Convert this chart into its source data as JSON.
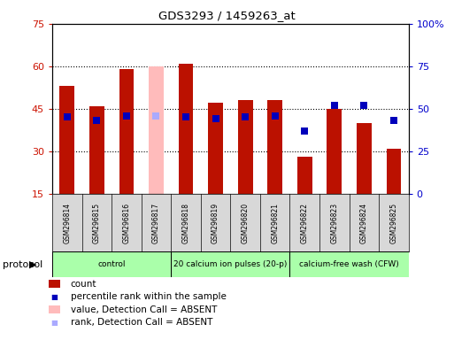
{
  "title": "GDS3293 / 1459263_at",
  "samples": [
    "GSM296814",
    "GSM296815",
    "GSM296816",
    "GSM296817",
    "GSM296818",
    "GSM296819",
    "GSM296820",
    "GSM296821",
    "GSM296822",
    "GSM296823",
    "GSM296824",
    "GSM296825"
  ],
  "counts": [
    53,
    46,
    59,
    60,
    61,
    47,
    48,
    48,
    28,
    45,
    40,
    31
  ],
  "percentiles": [
    45,
    43,
    46,
    46,
    45,
    44,
    45,
    46,
    37,
    52,
    52,
    43
  ],
  "absent": [
    false,
    false,
    false,
    true,
    false,
    false,
    false,
    false,
    false,
    false,
    false,
    false
  ],
  "ylim_left": [
    15,
    75
  ],
  "ylim_right": [
    0,
    100
  ],
  "yticks_left": [
    15,
    30,
    45,
    60,
    75
  ],
  "yticks_right": [
    0,
    25,
    50,
    75,
    100
  ],
  "ytick_labels_right": [
    "0",
    "25",
    "50",
    "75",
    "100%"
  ],
  "groups": [
    {
      "label": "control",
      "start": 0,
      "end": 3
    },
    {
      "label": "20 calcium ion pulses (20-p)",
      "start": 4,
      "end": 7
    },
    {
      "label": "calcium-free wash (CFW)",
      "start": 8,
      "end": 11
    }
  ],
  "group_color": "#aaffaa",
  "bar_color_present": "#bb1100",
  "bar_color_absent": "#ffbbbb",
  "dot_color_present": "#0000bb",
  "dot_color_absent": "#aaaaff",
  "tick_color_left": "#cc1100",
  "tick_color_right": "#0000cc",
  "bar_width": 0.5,
  "dot_size": 35,
  "plot_bg": "#ffffff",
  "grid_lines": [
    30,
    45,
    60
  ],
  "legend": [
    {
      "color": "#bb1100",
      "shape": "rect",
      "label": "count"
    },
    {
      "color": "#0000bb",
      "shape": "square",
      "label": "percentile rank within the sample"
    },
    {
      "color": "#ffbbbb",
      "shape": "rect",
      "label": "value, Detection Call = ABSENT"
    },
    {
      "color": "#aaaaff",
      "shape": "square",
      "label": "rank, Detection Call = ABSENT"
    }
  ]
}
